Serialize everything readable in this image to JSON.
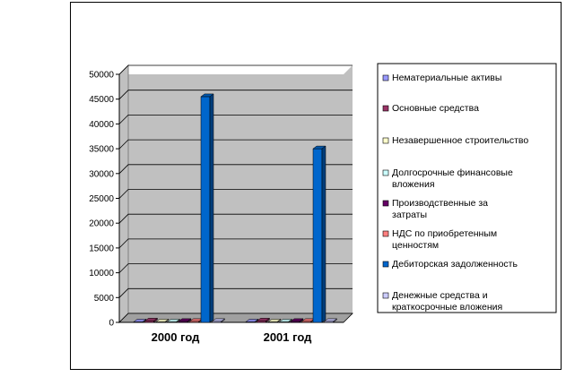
{
  "chart_data": {
    "type": "bar",
    "categories": [
      "2000 год",
      "2001 год"
    ],
    "series": [
      {
        "name": "Нематериальные активы",
        "color": "#9999ff",
        "values": [
          100,
          100
        ]
      },
      {
        "name": "Основные средства",
        "color": "#993366",
        "values": [
          300,
          300
        ]
      },
      {
        "name": "Незавершенное строительство",
        "color": "#ffffcc",
        "values": [
          100,
          100
        ]
      },
      {
        "name": "Долгосрочные финансовые вложения",
        "color": "#ccffff",
        "values": [
          100,
          100
        ]
      },
      {
        "name": "Производственные затраты",
        "color": "#660066",
        "values": [
          200,
          200
        ]
      },
      {
        "name": "НДС по приобретенным ценностям",
        "color": "#ff8080",
        "values": [
          200,
          200
        ]
      },
      {
        "name": "Дебиторская задолженность",
        "color": "#0066cc",
        "values": [
          45500,
          35000
        ]
      },
      {
        "name": "Денежные средства и краткосрочные вложения",
        "color": "#ccccff",
        "values": [
          200,
          200
        ]
      }
    ],
    "ylim": [
      0,
      50000
    ],
    "y_ticks": [
      "0",
      "5000",
      "10000",
      "15000",
      "20000",
      "25000",
      "30000",
      "35000",
      "40000",
      "45000",
      "50000"
    ],
    "grid": true,
    "legend_position": "right",
    "legend_lines": [
      [
        "Нематериальные активы"
      ],
      [
        "Основные средства"
      ],
      [
        "Незавершенное строительство"
      ],
      [
        "Долгосрочные финансовые",
        "вложения"
      ],
      [
        "Производственные за",
        "затраты"
      ],
      [
        "НДС по приобретенным",
        "ценностям"
      ],
      [
        "Дебиторская задолженность"
      ],
      [
        "Денежные средства и",
        "краткосрочные вложения"
      ]
    ]
  }
}
